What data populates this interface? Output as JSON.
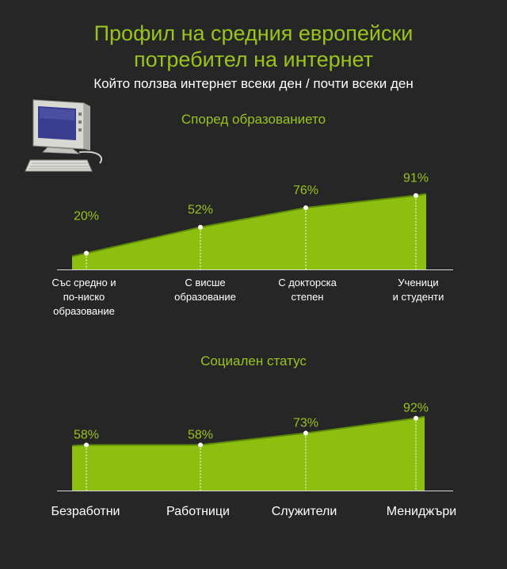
{
  "header": {
    "title_line1": "Профил на средния европейски",
    "title_line2": "потребител на интернет",
    "subtitle": "Който ползва интернет всеки ден / почти всеки ден"
  },
  "icons": {
    "computer": "computer-icon"
  },
  "colors": {
    "accent": "#9ac31c",
    "fill": "#8cbf10",
    "edge": "#5e8a0a",
    "background": "#262626"
  },
  "chart_data": [
    {
      "type": "area",
      "title": "Според образованието",
      "categories": [
        [
          "Със средно и",
          "по-ниско",
          "образование"
        ],
        [
          "С висше",
          "образование"
        ],
        [
          "С докторска",
          "степен"
        ],
        [
          "Ученици",
          "и студенти"
        ]
      ],
      "values": [
        20,
        52,
        76,
        91
      ],
      "labels": [
        "20%",
        "52%",
        "76%",
        "91%"
      ],
      "unit": "%"
    },
    {
      "type": "area",
      "title": "Социален статус",
      "categories": [
        [
          "Безработни"
        ],
        [
          "Работници"
        ],
        [
          "Служители"
        ],
        [
          "Мениджъри"
        ]
      ],
      "values": [
        58,
        58,
        73,
        92
      ],
      "labels": [
        "58%",
        "58%",
        "73%",
        "92%"
      ],
      "unit": "%"
    }
  ]
}
